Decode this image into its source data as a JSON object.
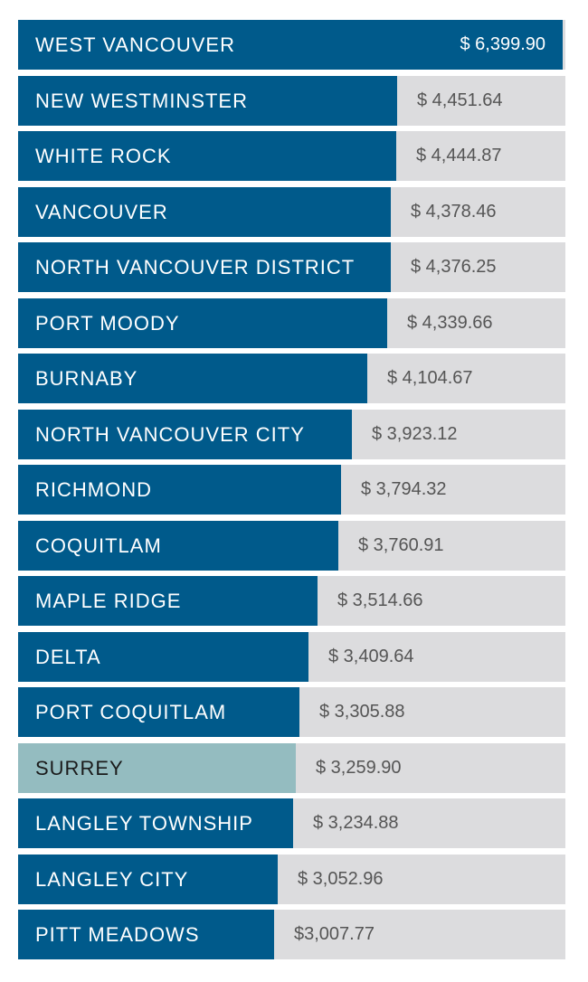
{
  "chart_data": {
    "type": "bar",
    "orientation": "horizontal",
    "categories": [
      "WEST VANCOUVER",
      "NEW WESTMINSTER",
      "WHITE ROCK",
      "VANCOUVER",
      "NORTH VANCOUVER DISTRICT",
      "PORT MOODY",
      "BURNABY",
      "NORTH VANCOUVER CITY",
      "RICHMOND",
      "COQUITLAM",
      "MAPLE RIDGE",
      "DELTA",
      "PORT COQUITLAM",
      "SURREY",
      "LANGLEY TOWNSHIP",
      "LANGLEY CITY",
      "PITT MEADOWS"
    ],
    "values": [
      6399.9,
      4451.64,
      4444.87,
      4378.46,
      4376.25,
      4339.66,
      4104.67,
      3923.12,
      3794.32,
      3760.91,
      3514.66,
      3409.64,
      3305.88,
      3259.9,
      3234.88,
      3052.96,
      3007.77
    ],
    "value_labels": [
      "$ 6,399.90",
      "$ 4,451.64",
      "$ 4,444.87",
      "$ 4,378.46",
      "$ 4,376.25",
      "$ 4,339.66",
      "$ 4,104.67",
      "$ 3,923.12",
      "$ 3,794.32",
      "$ 3,760.91",
      "$ 3,514.66",
      "$ 3,409.64",
      "$ 3,305.88",
      "$ 3,259.90",
      "$ 3,234.88",
      "$ 3,052.96",
      "$3,007.77"
    ],
    "highlighted": "SURREY",
    "xlim": [
      0,
      6399.9
    ],
    "title": "",
    "xlabel": "",
    "ylabel": "",
    "grid": false,
    "legend": "none",
    "colors": {
      "bar": "#005a8b",
      "highlight": "#94bcc0",
      "track": "#dcdcde",
      "value_text": "#555555"
    }
  }
}
